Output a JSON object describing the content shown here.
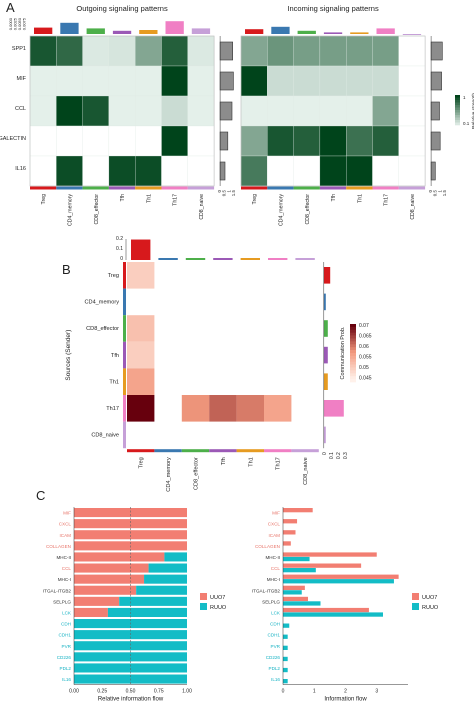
{
  "panels": {
    "a": "A",
    "b": "B",
    "c": "C"
  },
  "chart_data": [
    {
      "type": "heatmap",
      "title": "Outgoing signaling patterns",
      "rows": [
        "SPP1",
        "MIF",
        "CCL",
        "GALECTIN",
        "IL16"
      ],
      "columns": [
        "Treg",
        "CD4_memory",
        "CD8_effector",
        "Tfh",
        "Th1",
        "Th17",
        "CD8_naive"
      ],
      "column_colors": [
        "#d7191c",
        "#3a78b0",
        "#4daf4a",
        "#9b59b6",
        "#e69b21",
        "#f07fc4",
        "#c6a0d8"
      ],
      "values": [
        [
          0.9,
          0.8,
          0.08,
          0.1,
          0.45,
          0.85,
          0.08
        ],
        [
          0.04,
          0.04,
          0.04,
          0.04,
          0.04,
          1.0,
          0.04
        ],
        [
          0.04,
          1.0,
          0.9,
          0.04,
          0.04,
          0.15,
          0.04
        ],
        [
          0.0,
          0.0,
          0.0,
          0.0,
          0.0,
          1.0,
          0.0
        ],
        [
          0.0,
          0.95,
          0.0,
          0.95,
          0.95,
          0.0,
          0.0
        ]
      ],
      "top_bars": [
        0.4,
        0.7,
        0.35,
        0.2,
        0.25,
        0.8,
        0.35
      ],
      "top_ticks": [
        "0.0000",
        "0.0025",
        "0.0050",
        "0.0075"
      ],
      "row_totals": [
        0.9,
        0.95,
        0.85,
        0.55,
        0.35
      ],
      "right_ticks": [
        "0",
        "0.5",
        "1",
        "1.5"
      ]
    },
    {
      "type": "heatmap",
      "title": "Incoming signaling patterns",
      "rows": [
        "SPP1",
        "MIF",
        "CCL",
        "GALECTIN",
        "IL16"
      ],
      "columns": [
        "Treg",
        "CD4_memory",
        "CD8_effector",
        "Tfh",
        "Th1",
        "Th17",
        "CD8_naive"
      ],
      "values": [
        [
          0.45,
          0.55,
          0.5,
          0.5,
          0.5,
          0.5,
          0.0
        ],
        [
          1.0,
          0.15,
          0.15,
          0.15,
          0.15,
          0.15,
          0.0
        ],
        [
          0.04,
          0.04,
          0.04,
          0.04,
          0.04,
          0.45,
          0.0
        ],
        [
          0.45,
          0.9,
          0.85,
          1.0,
          0.75,
          0.85,
          0.0
        ],
        [
          0.7,
          0.0,
          0.0,
          1.0,
          1.0,
          0.0,
          0.0
        ]
      ],
      "top_bars": [
        0.3,
        0.45,
        0.2,
        0.1,
        0.1,
        0.35,
        0.0
      ],
      "row_totals": [
        0.8,
        0.75,
        0.6,
        0.65,
        0.3
      ],
      "right_ticks": [
        "0",
        "0.5",
        "1",
        "1.5"
      ],
      "legend_label": "Relative strength",
      "legend_ticks": [
        "1",
        "0.1"
      ]
    },
    {
      "type": "heatmap",
      "ylabel": "Sources (Sender)",
      "rows": [
        "Treg",
        "CD4_memory",
        "CD8_effector",
        "Tfh",
        "Th1",
        "Th17",
        "CD8_naive"
      ],
      "columns": [
        "Treg",
        "CD4_memory",
        "CD8_effector",
        "Tfh",
        "Th1",
        "Th17",
        "CD8_naive"
      ],
      "values": [
        [
          0.05,
          null,
          null,
          null,
          null,
          null,
          null
        ],
        [
          null,
          null,
          null,
          null,
          null,
          null,
          null
        ],
        [
          0.052,
          null,
          null,
          null,
          null,
          null,
          null
        ],
        [
          0.05,
          null,
          null,
          null,
          null,
          null,
          null
        ],
        [
          0.056,
          null,
          null,
          null,
          null,
          null,
          null
        ],
        [
          0.07,
          null,
          0.058,
          0.062,
          0.06,
          0.056,
          null
        ],
        [
          null,
          null,
          null,
          null,
          null,
          null,
          null
        ]
      ],
      "top_bars": [
        0.22,
        0.005,
        0.01,
        0.01,
        0.01,
        0.01,
        0.0
      ],
      "top_ticks": [
        "0",
        "0.1",
        "0.2"
      ],
      "right_bars": [
        0.08,
        0.01,
        0.05,
        0.05,
        0.05,
        0.25,
        0.01
      ],
      "right_ticks": [
        "0",
        "0.1",
        "0.2",
        "0.3"
      ],
      "legend_label": "Communication Prob.",
      "legend_ticks": [
        "0.07",
        "0.065",
        "0.06",
        "0.055",
        "0.05",
        "0.045"
      ]
    },
    {
      "type": "bar",
      "orientation": "horizontal",
      "stacked": true,
      "xlabel": "Relative information flow",
      "xticks": [
        "0.00",
        "0.25",
        "0.50",
        "0.75",
        "1.00"
      ],
      "categories": [
        "MIF",
        "CXCL",
        "ICAM",
        "COLLAGEN",
        "MHC-II",
        "CCL",
        "MHC-I",
        "ITGAL-ITGB2",
        "SELPLG",
        "LCK",
        "CDH",
        "CDH1",
        "PVR",
        "CD226",
        "PDL2",
        "IL16"
      ],
      "label_colors": [
        "#e8766b",
        "#e8766b",
        "#e8766b",
        "#e8766b",
        "#333333",
        "#e8766b",
        "#333333",
        "#333333",
        "#333333",
        "#17b3c4",
        "#17b3c4",
        "#17b3c4",
        "#17b3c4",
        "#17b3c4",
        "#17b3c4",
        "#17b3c4"
      ],
      "series": [
        {
          "name": "UUO7",
          "color": "#f27e72",
          "values": [
            1,
            1,
            1,
            1,
            0.8,
            0.66,
            0.62,
            0.55,
            0.4,
            0.3,
            0,
            0,
            0,
            0,
            0,
            0
          ]
        },
        {
          "name": "RUUO",
          "color": "#13bcc6",
          "values": [
            0,
            0,
            0,
            0,
            0.2,
            0.34,
            0.38,
            0.45,
            0.6,
            0.7,
            1,
            1,
            1,
            1,
            1,
            1
          ]
        }
      ]
    },
    {
      "type": "bar",
      "orientation": "horizontal",
      "stacked": false,
      "xlabel": "Information flow",
      "xticks": [
        "0",
        "1",
        "2",
        "3"
      ],
      "xlim": [
        0,
        4
      ],
      "categories": [
        "MIF",
        "CXCL",
        "ICAM",
        "COLLAGEN",
        "MHC-II",
        "CCL",
        "MHC-I",
        "ITGAL-ITGB2",
        "SELPLG",
        "LCK",
        "CDH",
        "CDH1",
        "PVR",
        "CD226",
        "PDL2",
        "IL16"
      ],
      "series": [
        {
          "name": "UUO7",
          "color": "#f27e72",
          "values": [
            0.95,
            0.45,
            0.4,
            0.25,
            3.0,
            2.5,
            3.7,
            0.7,
            0.8,
            2.75,
            0,
            0,
            0,
            0,
            0,
            0
          ]
        },
        {
          "name": "RUUO",
          "color": "#13bcc6",
          "values": [
            0,
            0,
            0,
            0,
            0.85,
            1.05,
            3.55,
            0.6,
            1.2,
            3.2,
            0.2,
            0.15,
            0.15,
            0.15,
            0.15,
            0.15
          ]
        }
      ]
    }
  ]
}
